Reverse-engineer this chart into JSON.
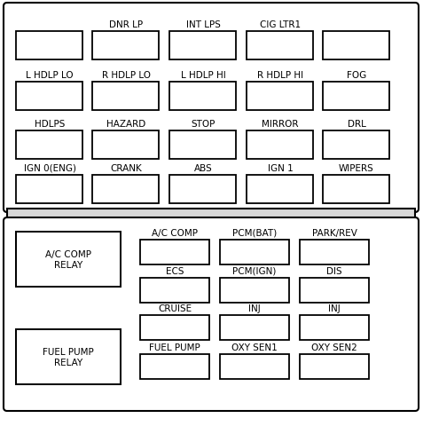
{
  "bg_color": "#ffffff",
  "border_color": "#000000",
  "text_color": "#000000",
  "top_row0_labels": [
    "",
    "DNR LP",
    "INT LPS",
    "CIG LTR1",
    ""
  ],
  "top_row1_labels": [
    "L HDLP LO",
    "R HDLP LO",
    "L HDLP HI",
    "R HDLP HI",
    "FOG"
  ],
  "top_row2_labels": [
    "HDLPS",
    "HAZARD",
    "STOP",
    "MIRROR",
    "DRL"
  ],
  "top_row3_labels": [
    "IGN 0(ENG)",
    "CRANK",
    "ABS",
    "IGN 1",
    "WIPERS"
  ],
  "bot_row0_labels": [
    "A/C COMP",
    "PCM(BAT)",
    "PARK/REV"
  ],
  "bot_row1_labels": [
    "ECS",
    "PCM(IGN)",
    "DIS"
  ],
  "bot_row2_labels": [
    "CRUISE",
    "INJ",
    "INJ"
  ],
  "bot_row3_labels": [
    "FUEL PUMP",
    "OXY SEN1",
    "OXY SEN2"
  ],
  "relay0_label": "A/C COMP\nRELAY",
  "relay1_label": "FUEL PUMP\nRELAY",
  "font_size_label": 7.5,
  "font_size_relay": 7.5,
  "fuse_lw": 1.3,
  "outer_lw": 1.5
}
